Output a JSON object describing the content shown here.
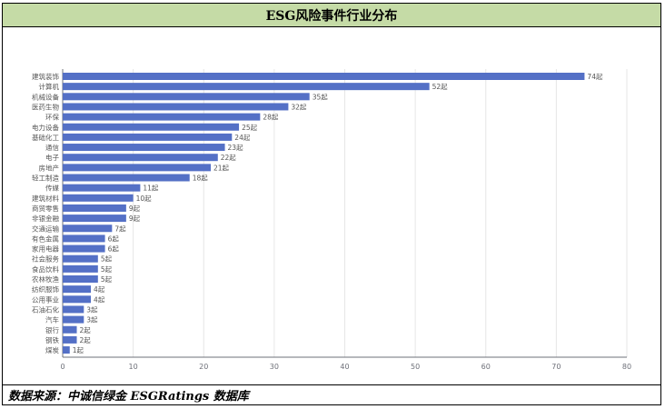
{
  "title": "ESG风险事件行业分布",
  "source": "数据来源：中诚信绿金 ESGRatings 数据库",
  "chart_data": {
    "type": "bar",
    "orientation": "horizontal",
    "title": "ESG风险事件行业分布",
    "categories": [
      "建筑装饰",
      "计算机",
      "机械设备",
      "医药生物",
      "环保",
      "电力设备",
      "基础化工",
      "通信",
      "电子",
      "房地产",
      "轻工制造",
      "传媒",
      "建筑材料",
      "商贸零售",
      "非银金融",
      "交通运输",
      "有色金属",
      "家用电器",
      "社会服务",
      "食品饮料",
      "农林牧渔",
      "纺织服饰",
      "公用事业",
      "石油石化",
      "汽车",
      "银行",
      "钢铁",
      "煤炭"
    ],
    "values": [
      74,
      52,
      35,
      32,
      28,
      25,
      24,
      23,
      22,
      21,
      18,
      11,
      10,
      9,
      9,
      7,
      6,
      6,
      5,
      5,
      5,
      4,
      4,
      3,
      3,
      2,
      2,
      1
    ],
    "data_labels": [
      "74起",
      "52起",
      "35起",
      "32起",
      "28起",
      "25起",
      "24起",
      "23起",
      "22起",
      "21起",
      "18起",
      "11起",
      "10起",
      "9起",
      "9起",
      "7起",
      "6起",
      "6起",
      "5起",
      "5起",
      "5起",
      "4起",
      "4起",
      "3起",
      "3起",
      "2起",
      "2起",
      "1起"
    ],
    "xlim": [
      0,
      80
    ],
    "xticks": [
      0,
      10,
      20,
      30,
      40,
      50,
      60,
      70,
      80
    ],
    "grid": true,
    "bar_color": "#5470c6"
  }
}
